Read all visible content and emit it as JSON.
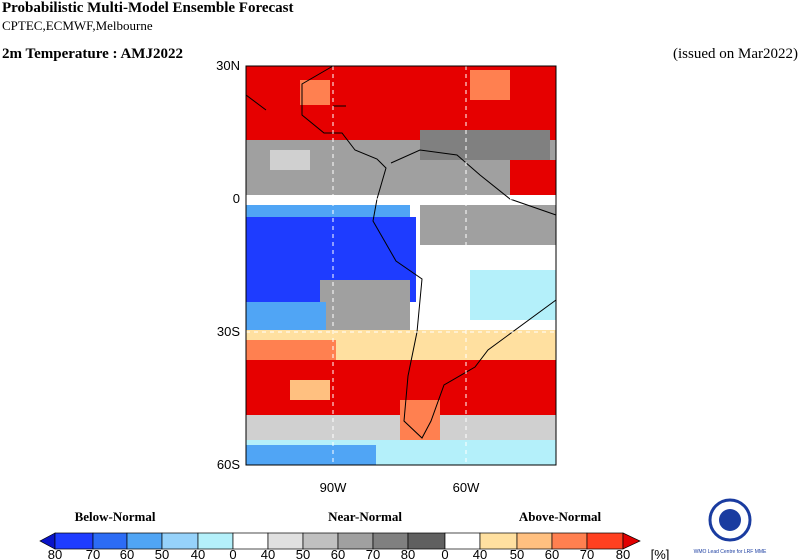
{
  "header": {
    "title": "Probabilistic Multi-Model Ensemble Forecast",
    "subtitle": "CPTEC,ECMWF,Melbourne",
    "variable": "2m Temperature : AMJ2022",
    "issued": "(issued on Mar2022)"
  },
  "map": {
    "lat_labels": [
      "30N",
      "0",
      "30S",
      "60S"
    ],
    "lon_labels": [
      "90W",
      "60W"
    ]
  },
  "legend": {
    "groups": [
      "Below-Normal",
      "Near-Normal",
      "Above-Normal"
    ],
    "ticks": [
      "80",
      "70",
      "60",
      "50",
      "40",
      "0",
      "40",
      "50",
      "60",
      "70",
      "80",
      "0",
      "40",
      "50",
      "60",
      "70",
      "80"
    ],
    "unit": "[%]"
  },
  "logo": {
    "text": "WMO Lead Centre for LRF MME"
  }
}
